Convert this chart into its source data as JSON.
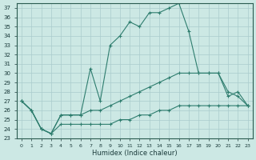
{
  "xlabel": "Humidex (Indice chaleur)",
  "background_color": "#cce8e4",
  "grid_color": "#aacccc",
  "line_color": "#2e7d6e",
  "xlim": [
    -0.5,
    23.5
  ],
  "ylim": [
    23,
    37.5
  ],
  "xticks": [
    0,
    1,
    2,
    3,
    4,
    5,
    6,
    7,
    8,
    9,
    10,
    11,
    12,
    13,
    14,
    15,
    16,
    17,
    18,
    19,
    20,
    21,
    22,
    23
  ],
  "yticks": [
    23,
    24,
    25,
    26,
    27,
    28,
    29,
    30,
    31,
    32,
    33,
    34,
    35,
    36,
    37
  ],
  "line1_x": [
    0,
    1,
    2,
    3,
    4,
    5,
    6,
    7,
    8,
    9,
    10,
    11,
    12,
    13,
    14,
    15,
    16,
    17,
    18,
    19,
    20,
    21,
    22,
    23
  ],
  "line1_y": [
    27,
    26,
    24,
    23.5,
    25.5,
    25.5,
    25.5,
    30.5,
    27,
    33,
    34,
    35.5,
    35,
    36.5,
    36.5,
    37,
    37.5,
    34.5,
    30,
    30,
    30,
    27.5,
    28,
    26.5
  ],
  "line2_x": [
    0,
    1,
    2,
    3,
    4,
    5,
    6,
    7,
    8,
    9,
    10,
    11,
    12,
    13,
    14,
    15,
    16,
    17,
    18,
    19,
    20,
    21,
    22,
    23
  ],
  "line2_y": [
    27,
    26,
    24,
    23.5,
    25.5,
    25.5,
    25.5,
    26.0,
    26.0,
    26.5,
    27,
    27.5,
    28,
    28.5,
    29,
    29.5,
    30,
    30,
    30,
    30,
    30,
    28.0,
    27.5,
    26.5
  ],
  "line3_x": [
    0,
    1,
    2,
    3,
    4,
    5,
    6,
    7,
    8,
    9,
    10,
    11,
    12,
    13,
    14,
    15,
    16,
    17,
    18,
    19,
    20,
    21,
    22,
    23
  ],
  "line3_y": [
    27,
    26,
    24,
    23.5,
    24.5,
    24.5,
    24.5,
    24.5,
    24.5,
    24.5,
    25,
    25,
    25.5,
    25.5,
    26,
    26,
    26.5,
    26.5,
    26.5,
    26.5,
    26.5,
    26.5,
    26.5,
    26.5
  ]
}
